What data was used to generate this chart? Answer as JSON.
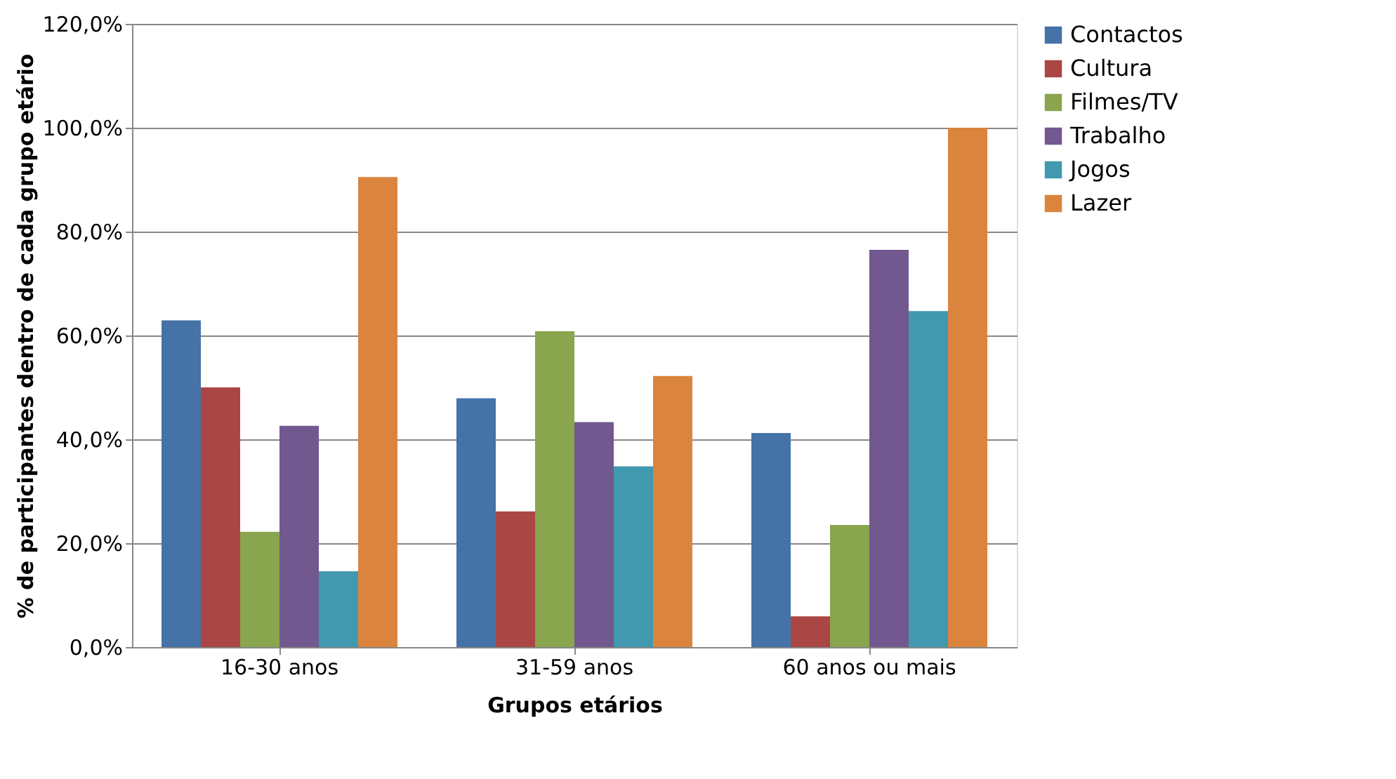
{
  "chart_data": {
    "type": "bar",
    "xlabel": "Grupos etários",
    "ylabel": "% de participantes dentro de cada grupo etário",
    "categories": [
      "16-30 anos",
      "31-59 anos",
      "60 anos ou mais"
    ],
    "series": [
      {
        "name": "Contactos",
        "color": "#4572a7",
        "values": [
          62.9,
          47.9,
          41.2
        ]
      },
      {
        "name": "Cultura",
        "color": "#aa4643",
        "values": [
          50.0,
          26.1,
          5.9
        ]
      },
      {
        "name": "Filmes/TV",
        "color": "#89a54e",
        "values": [
          22.2,
          60.8,
          23.5
        ]
      },
      {
        "name": "Trabalho",
        "color": "#71588f",
        "values": [
          42.6,
          43.3,
          76.5
        ]
      },
      {
        "name": "Jogos",
        "color": "#4198af",
        "values": [
          14.6,
          34.8,
          64.7
        ]
      },
      {
        "name": "Lazer",
        "color": "#db843d",
        "values": [
          90.5,
          52.2,
          100.0
        ]
      }
    ],
    "ylim": [
      0,
      120
    ],
    "yticks": [
      {
        "value": 0,
        "label": "0,0%"
      },
      {
        "value": 20,
        "label": "20,0%"
      },
      {
        "value": 40,
        "label": "40,0%"
      },
      {
        "value": 60,
        "label": "60,0%"
      },
      {
        "value": 80,
        "label": "80,0%"
      },
      {
        "value": 100,
        "label": "100,0%"
      },
      {
        "value": 120,
        "label": "120,0%"
      }
    ],
    "grid": "y",
    "legend": "right"
  }
}
